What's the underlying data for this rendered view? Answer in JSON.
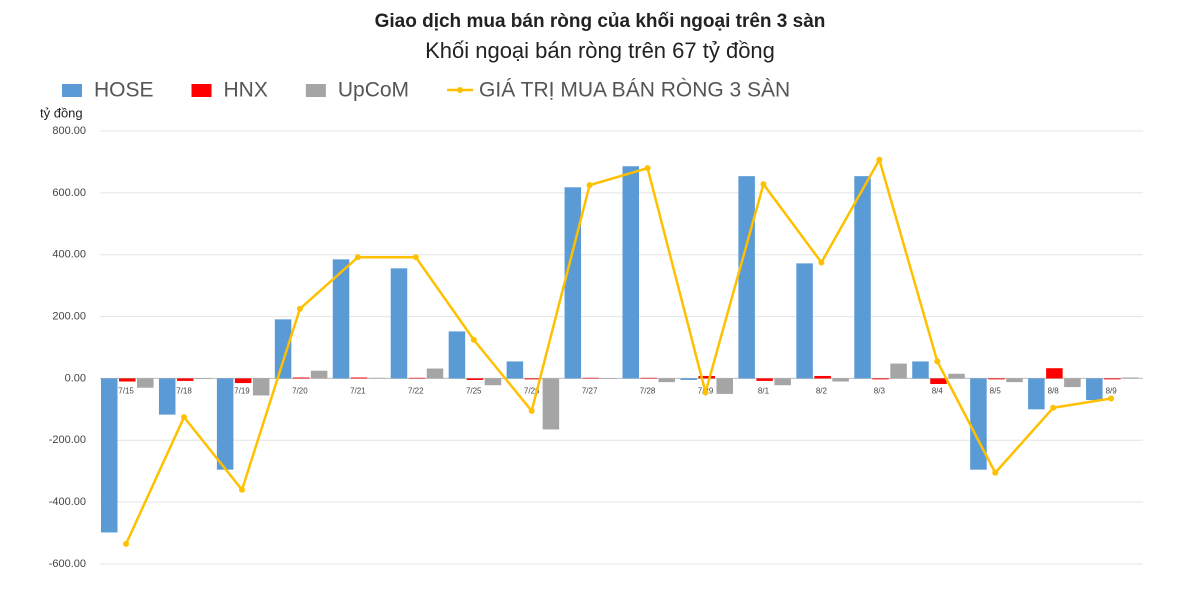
{
  "chart_data": {
    "type": "bar-line",
    "title": "Giao dịch mua bán ròng của khối ngoại trên 3 sàn",
    "subtitle": "Khối ngoại bán ròng trên 67 tỷ đồng",
    "y_label": "tỷ đồng",
    "categories": [
      "7/15",
      "7/18",
      "7/19",
      "7/20",
      "7/21",
      "7/22",
      "7/25",
      "7/26",
      "7/27",
      "7/28",
      "7/29",
      "8/1",
      "8/2",
      "8/3",
      "8/4",
      "8/5",
      "8/8",
      "8/9"
    ],
    "series": [
      {
        "name": "HOSE",
        "color": "#5b9bd5",
        "kind": "bar",
        "values": [
          -498,
          -117,
          -295,
          191,
          385,
          356,
          152,
          55,
          618,
          686,
          -5,
          654,
          372,
          654,
          55,
          -295,
          -100,
          -70
        ]
      },
      {
        "name": "HNX",
        "color": "#ff0000",
        "kind": "bar",
        "values": [
          -10,
          -8,
          -15,
          3,
          3,
          2,
          -5,
          -3,
          2,
          2,
          8,
          -8,
          8,
          -3,
          -18,
          -3,
          33,
          -3
        ]
      },
      {
        "name": "UpCoM",
        "color": "#a5a5a5",
        "kind": "bar",
        "values": [
          -30,
          -2,
          -55,
          25,
          2,
          32,
          -22,
          -165,
          0,
          -12,
          -50,
          -22,
          -10,
          48,
          15,
          -12,
          -28,
          3
        ]
      },
      {
        "name": "GIÁ TRỊ MUA BÁN RÒNG 3 SÀN",
        "color": "#ffc000",
        "kind": "line",
        "values": [
          -535,
          -125,
          -360,
          225,
          392,
          392,
          125,
          -105,
          625,
          680,
          -45,
          628,
          375,
          707,
          55,
          -305,
          -95,
          -65
        ]
      }
    ],
    "ylim": [
      -600,
      800
    ],
    "yticks": [
      {
        "value": -600,
        "label": "-600.00"
      },
      {
        "value": -400,
        "label": "-400.00"
      },
      {
        "value": -200,
        "label": "-200.00"
      },
      {
        "value": 0,
        "label": "0.00"
      },
      {
        "value": 200,
        "label": "200.00"
      },
      {
        "value": 400,
        "label": "400.00"
      },
      {
        "value": 600,
        "label": "600.00"
      },
      {
        "value": 800,
        "label": "800.00"
      }
    ],
    "grid": true
  }
}
